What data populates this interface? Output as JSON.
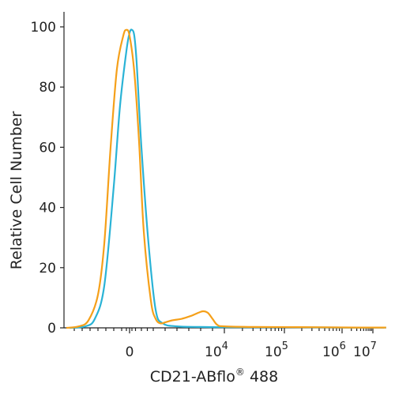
{
  "chart_data": {
    "type": "line",
    "title": "",
    "xlabel": "CD21-ABflo® 488",
    "ylabel": "Relative Cell Number",
    "ylim": [
      0,
      100
    ],
    "y_ticks": [
      0,
      20,
      40,
      60,
      80,
      100
    ],
    "x_scale": "biexponential",
    "x_ticks": [
      {
        "label": "0",
        "sup": ""
      },
      {
        "label": "10",
        "sup": "4"
      },
      {
        "label": "10",
        "sup": "5"
      },
      {
        "label": "10",
        "sup": "6"
      },
      {
        "label": "10",
        "sup": "7"
      }
    ],
    "grid": false,
    "legend": "none",
    "series": [
      {
        "color": "#2ab3d6",
        "x": [
          -1.9,
          -1.4,
          -1.1,
          -0.8,
          -0.5,
          -0.3,
          -0.1,
          0,
          0.1,
          0.2,
          0.3,
          0.5,
          0.8,
          1.1,
          1.4,
          2,
          3,
          4,
          5,
          6,
          7,
          8.4
        ],
        "y": [
          0,
          0.5,
          3,
          14,
          47,
          74,
          92,
          98,
          99,
          97,
          88,
          60,
          28,
          6,
          1.5,
          0.5,
          0.3,
          0.2,
          0.2,
          0.1,
          0.1,
          0.1
        ]
      },
      {
        "color": "#f5a01a",
        "x": [
          -2.0,
          -1.6,
          -1.3,
          -1.0,
          -0.8,
          -0.6,
          -0.4,
          -0.2,
          -0.1,
          0,
          0.2,
          0.4,
          0.6,
          0.9,
          1.1,
          1.3,
          1.5,
          1.8,
          2.2,
          2.6,
          2.9,
          3.1,
          3.3,
          3.5,
          3.7,
          4.0,
          4.5,
          5.5,
          6.5,
          8.4
        ],
        "y": [
          0,
          0.5,
          2.5,
          11,
          28,
          60,
          86,
          97,
          99,
          97,
          85,
          62,
          32,
          9,
          3,
          1.5,
          1.8,
          2.5,
          3,
          4,
          5,
          5.5,
          5,
          3,
          1,
          0.5,
          0.3,
          0.2,
          0.1,
          0.1
        ]
      }
    ]
  }
}
